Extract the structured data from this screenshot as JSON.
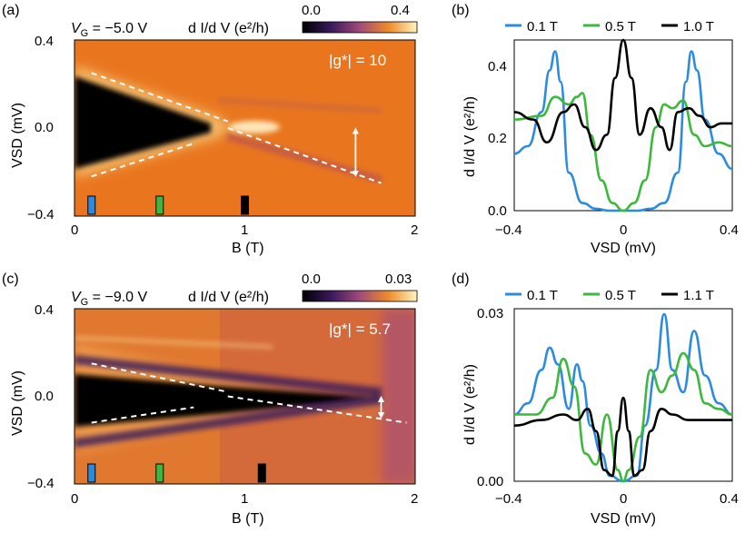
{
  "chart_data": [
    {
      "panel": "(a)",
      "type": "heatmap",
      "header": {
        "vg_label": "V",
        "vg_sub": "G",
        "vg_value": " = −5.0 V",
        "cbar_label": "d I/d V (e²/h)",
        "cbar_min": "0.0",
        "cbar_max": "0.4"
      },
      "annotation": "|g*| = 10",
      "xlabel": "B (T)",
      "ylabel": "VSD (mV)",
      "xlim": [
        0,
        2
      ],
      "ylim": [
        -0.4,
        0.4
      ],
      "xticks": [
        "0",
        "1",
        "2"
      ],
      "yticks": [
        "0.4",
        "0.0",
        "−0.4"
      ],
      "fit_lines": [
        {
          "x": [
            0.1,
            0.9
          ],
          "y": [
            0.25,
            0.03
          ]
        },
        {
          "x": [
            0.1,
            0.7
          ],
          "y": [
            -0.22,
            -0.07
          ]
        },
        {
          "x": [
            0.9,
            1.8
          ],
          "y": [
            0.0,
            -0.25
          ]
        }
      ],
      "markers": [
        {
          "x": 0.1,
          "color": "#2b8be0"
        },
        {
          "x": 0.5,
          "color": "#3cb83c"
        },
        {
          "x": 1.0,
          "color": "#000000"
        }
      ],
      "arrow": {
        "x": 1.65,
        "y": [
          -0.22,
          0.0
        ]
      }
    },
    {
      "panel": "(b)",
      "type": "line",
      "xlabel": "VSD (mV)",
      "ylabel": "d I/d V (e²/h)",
      "xlim": [
        -0.4,
        0.4
      ],
      "ylim": [
        0,
        0.45
      ],
      "xticks": [
        "−0.4",
        "0",
        "0.4"
      ],
      "yticks": [
        "0.0",
        "0.2",
        "0.4"
      ],
      "series": [
        {
          "name": "0.1 T",
          "color": "#2b8be0",
          "x": [
            -0.4,
            -0.35,
            -0.3,
            -0.27,
            -0.25,
            -0.23,
            -0.2,
            -0.15,
            -0.1,
            -0.05,
            0,
            0.05,
            0.1,
            0.15,
            0.2,
            0.23,
            0.25,
            0.27,
            0.3,
            0.35,
            0.4
          ],
          "y": [
            0.15,
            0.17,
            0.26,
            0.37,
            0.42,
            0.34,
            0.1,
            0.02,
            0.005,
            0.0,
            0.0,
            0.0,
            0.005,
            0.02,
            0.1,
            0.34,
            0.42,
            0.37,
            0.24,
            0.15,
            0.11
          ]
        },
        {
          "name": "0.5 T",
          "color": "#3cb83c",
          "x": [
            -0.4,
            -0.3,
            -0.25,
            -0.2,
            -0.17,
            -0.15,
            -0.12,
            -0.08,
            -0.04,
            0,
            0.04,
            0.08,
            0.12,
            0.15,
            0.18,
            0.22,
            0.26,
            0.3,
            0.35,
            0.4
          ],
          "y": [
            0.24,
            0.25,
            0.3,
            0.28,
            0.3,
            0.31,
            0.2,
            0.08,
            0.02,
            0.0,
            0.02,
            0.08,
            0.22,
            0.28,
            0.27,
            0.29,
            0.2,
            0.17,
            0.18,
            0.17
          ]
        },
        {
          "name": "1.0 T",
          "color": "#000000",
          "x": [
            -0.4,
            -0.33,
            -0.28,
            -0.22,
            -0.18,
            -0.14,
            -0.1,
            -0.06,
            -0.03,
            0,
            0.03,
            0.06,
            0.1,
            0.14,
            0.17,
            0.2,
            0.24,
            0.28,
            0.32,
            0.36,
            0.4
          ],
          "y": [
            0.26,
            0.24,
            0.18,
            0.26,
            0.28,
            0.22,
            0.16,
            0.2,
            0.35,
            0.45,
            0.35,
            0.2,
            0.27,
            0.22,
            0.16,
            0.26,
            0.27,
            0.25,
            0.22,
            0.23,
            0.23
          ]
        }
      ]
    },
    {
      "panel": "(c)",
      "type": "heatmap",
      "header": {
        "vg_label": "V",
        "vg_sub": "G",
        "vg_value": " = −9.0 V",
        "cbar_label": "d I/d V (e²/h)",
        "cbar_min": "0.0",
        "cbar_max": "0.03"
      },
      "annotation": "|g*| = 5.7",
      "xlabel": "B (T)",
      "ylabel": "VSD (mV)",
      "xlim": [
        0,
        2
      ],
      "ylim": [
        -0.4,
        0.4
      ],
      "xticks": [
        "0",
        "1",
        "2"
      ],
      "yticks": [
        "0.4",
        "0.0",
        "−0.4"
      ],
      "fit_lines": [
        {
          "x": [
            0.1,
            0.9
          ],
          "y": [
            0.15,
            0.02
          ]
        },
        {
          "x": [
            0.1,
            0.7
          ],
          "y": [
            -0.12,
            -0.05
          ]
        },
        {
          "x": [
            0.9,
            1.95
          ],
          "y": [
            0.0,
            -0.12
          ]
        }
      ],
      "markers": [
        {
          "x": 0.1,
          "color": "#2b8be0"
        },
        {
          "x": 0.5,
          "color": "#3cb83c"
        },
        {
          "x": 1.1,
          "color": "#000000"
        }
      ],
      "arrow": {
        "x": 1.8,
        "y": [
          -0.1,
          0.0
        ]
      }
    },
    {
      "panel": "(d)",
      "type": "line",
      "xlabel": "VSD (mV)",
      "ylabel": "d I/d V (e²/h)",
      "xlim": [
        -0.4,
        0.4
      ],
      "ylim": [
        0,
        0.031
      ],
      "xticks": [
        "−0.4",
        "0",
        "0.4"
      ],
      "yticks": [
        "0.00",
        "0.03"
      ],
      "series": [
        {
          "name": "0.1 T",
          "color": "#2b8be0",
          "x": [
            -0.4,
            -0.35,
            -0.3,
            -0.27,
            -0.24,
            -0.2,
            -0.17,
            -0.15,
            -0.12,
            -0.08,
            -0.05,
            0,
            0.05,
            0.08,
            0.12,
            0.15,
            0.18,
            0.22,
            0.26,
            0.3,
            0.35,
            0.4
          ],
          "y": [
            0.012,
            0.014,
            0.02,
            0.024,
            0.021,
            0.013,
            0.021,
            0.018,
            0.01,
            0.005,
            0.001,
            0.0,
            0.001,
            0.01,
            0.02,
            0.03,
            0.02,
            0.016,
            0.027,
            0.019,
            0.014,
            0.012
          ]
        },
        {
          "name": "0.5 T",
          "color": "#3cb83c",
          "x": [
            -0.4,
            -0.32,
            -0.26,
            -0.22,
            -0.18,
            -0.14,
            -0.1,
            -0.06,
            -0.02,
            0,
            0.02,
            0.06,
            0.1,
            0.14,
            0.18,
            0.22,
            0.26,
            0.3,
            0.35,
            0.4
          ],
          "y": [
            0.012,
            0.012,
            0.015,
            0.022,
            0.017,
            0.005,
            0.003,
            0.012,
            0.002,
            0.0,
            0.002,
            0.008,
            0.02,
            0.016,
            0.019,
            0.023,
            0.02,
            0.014,
            0.013,
            0.012
          ]
        },
        {
          "name": "1.1 T",
          "color": "#000000",
          "x": [
            -0.4,
            -0.3,
            -0.22,
            -0.17,
            -0.13,
            -0.1,
            -0.07,
            -0.04,
            -0.02,
            0,
            0.02,
            0.04,
            0.07,
            0.1,
            0.14,
            0.18,
            0.24,
            0.3,
            0.35,
            0.4
          ],
          "y": [
            0.01,
            0.011,
            0.012,
            0.011,
            0.013,
            0.009,
            0.002,
            0.001,
            0.009,
            0.015,
            0.009,
            0.001,
            0.002,
            0.009,
            0.013,
            0.012,
            0.011,
            0.011,
            0.011,
            0.011
          ]
        }
      ]
    }
  ]
}
